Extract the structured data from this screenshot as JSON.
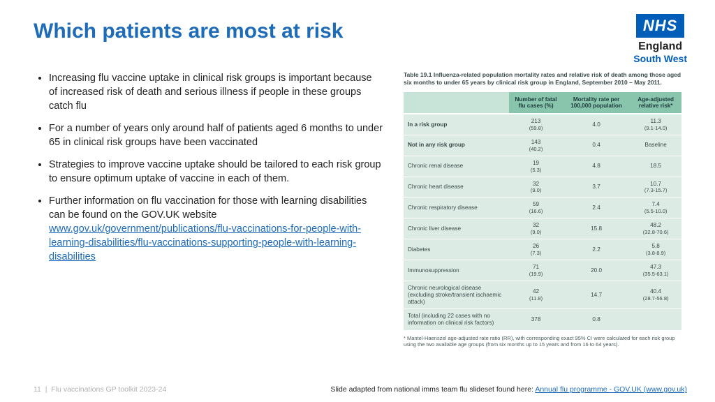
{
  "title": "Which patients are most at risk",
  "logo": {
    "box": "NHS",
    "line1": "England",
    "line2": "South West"
  },
  "bullets": [
    {
      "text": "Increasing flu vaccine uptake in clinical risk groups is important because of  increased risk of death and serious illness if people in these groups catch flu"
    },
    {
      "text": "For a number of years only around half of patients aged 6 months to under 65 in clinical risk groups have been vaccinated"
    },
    {
      "text": "Strategies to improve vaccine uptake should be tailored to each risk group to ensure optimum uptake of vaccine in each of them."
    },
    {
      "text": "Further information on flu vaccination for those with learning disabilities can be found on the GOV.UK website ",
      "link": "www.gov.uk/government/publications/flu-vaccinations-for-people-with-learning-disabilities/flu-vaccinations-supporting-people-with-learning-disabilities"
    }
  ],
  "table": {
    "caption": "Table 19.1 Influenza-related population mortality rates and relative risk of death among those aged six months to under 65 years by clinical risk group in England, September 2010 – May 2011.",
    "headers": [
      "",
      "Number of fatal flu cases (%)",
      "Mortality rate per 100,000 population",
      "Age-adjusted relative risk*"
    ],
    "rows": [
      {
        "bold": true,
        "label": "In a risk group",
        "c1": "213",
        "c1s": "(59.8)",
        "c2": "4.0",
        "c3": "11.3",
        "c3s": "(9.1-14.0)"
      },
      {
        "bold": true,
        "label": "Not in any risk group",
        "c1": "143",
        "c1s": "(40.2)",
        "c2": "0.4",
        "c3": "Baseline",
        "c3s": ""
      },
      {
        "bold": false,
        "label": "Chronic renal disease",
        "c1": "19",
        "c1s": "(5.3)",
        "c2": "4.8",
        "c3": "18.5",
        "c3s": ""
      },
      {
        "bold": false,
        "label": "Chronic heart disease",
        "c1": "32",
        "c1s": "(9.0)",
        "c2": "3.7",
        "c3": "10.7",
        "c3s": "(7.3-15.7)"
      },
      {
        "bold": false,
        "label": "Chronic respiratory disease",
        "c1": "59",
        "c1s": "(16.6)",
        "c2": "2.4",
        "c3": "7.4",
        "c3s": "(5.5-10.0)"
      },
      {
        "bold": false,
        "label": "Chronic liver disease",
        "c1": "32",
        "c1s": "(9.0)",
        "c2": "15.8",
        "c3": "48.2",
        "c3s": "(32.8-70.6)"
      },
      {
        "bold": false,
        "label": "Diabetes",
        "c1": "26",
        "c1s": "(7.3)",
        "c2": "2.2",
        "c3": "5.8",
        "c3s": "(3.8-8.9)"
      },
      {
        "bold": false,
        "label": "Immunosuppression",
        "c1": "71",
        "c1s": "(19.9)",
        "c2": "20.0",
        "c3": "47.3",
        "c3s": "(35.5-63.1)"
      },
      {
        "bold": false,
        "label": "Chronic neurological disease (excluding stroke/transient ischaemic attack)",
        "c1": "42",
        "c1s": "(11.8)",
        "c2": "14.7",
        "c3": "40.4",
        "c3s": "(28.7-56.8)"
      },
      {
        "bold": false,
        "label": "Total (including 22 cases with no information on clinical risk factors)",
        "c1": "378",
        "c1s": "",
        "c2": "0.8",
        "c3": "",
        "c3s": ""
      }
    ],
    "footnote": "* Mantel-Haenszel age-adjusted rate ratio (RR), with corresponding exact 95% CI were calculated for each risk group using the two available age groups (from six months up to 15 years and from 16 to 64 years)."
  },
  "footer": {
    "page": "11",
    "deck": "Flu vaccinations GP toolkit 2023-24",
    "credit_text": "Slide adapted from national imms team flu slideset found here: ",
    "credit_link": "Annual flu programme - GOV.UK (www.gov.uk)"
  },
  "colors": {
    "title": "#1e6bb8",
    "nhs_blue": "#005eb8",
    "th_bg": "#89c4ad",
    "td_bg": "#dcece4",
    "link": "#1e6bb8"
  }
}
